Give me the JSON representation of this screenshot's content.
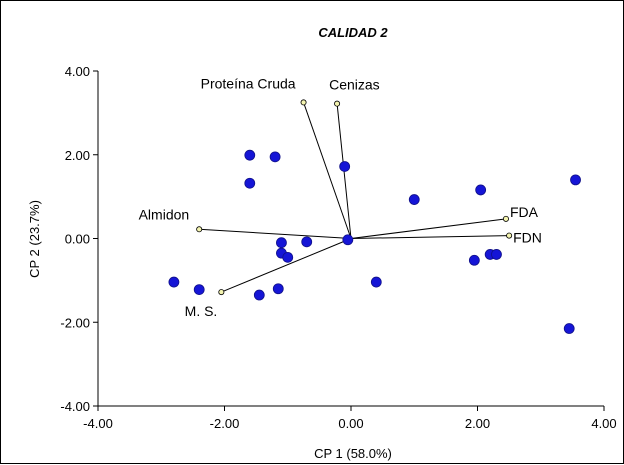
{
  "chart_data": {
    "type": "scatter",
    "title": "CALIDAD 2",
    "xlabel": "CP 1 (58.0%)",
    "ylabel": "CP 2 (23.7%)",
    "xlim": [
      -4,
      4
    ],
    "ylim": [
      -4,
      4
    ],
    "x_ticks": [
      "-4.00",
      "-2.00",
      "0.00",
      "2.00",
      "4.00"
    ],
    "y_ticks": [
      "4.00",
      "2.00",
      "0.00",
      "-2.00",
      "-4.00"
    ],
    "grid": false,
    "point_color": "#1515d6",
    "vector_color": "#000000",
    "vector_tip_color": "#f4f4b0",
    "points": [
      {
        "x": -1.6,
        "y": 1.99
      },
      {
        "x": -1.2,
        "y": 1.95
      },
      {
        "x": -1.6,
        "y": 1.32
      },
      {
        "x": -0.1,
        "y": 1.72
      },
      {
        "x": 1.0,
        "y": 0.93
      },
      {
        "x": 2.05,
        "y": 1.16
      },
      {
        "x": 3.55,
        "y": 1.4
      },
      {
        "x": -1.1,
        "y": -0.1
      },
      {
        "x": -0.7,
        "y": -0.08
      },
      {
        "x": -1.1,
        "y": -0.35
      },
      {
        "x": -1.0,
        "y": -0.45
      },
      {
        "x": -0.05,
        "y": -0.03
      },
      {
        "x": 0.4,
        "y": -1.04
      },
      {
        "x": 1.95,
        "y": -0.52
      },
      {
        "x": 2.2,
        "y": -0.38
      },
      {
        "x": 2.3,
        "y": -0.38
      },
      {
        "x": -2.8,
        "y": -1.04
      },
      {
        "x": -2.4,
        "y": -1.22
      },
      {
        "x": -1.45,
        "y": -1.35
      },
      {
        "x": -1.15,
        "y": -1.2
      },
      {
        "x": 3.45,
        "y": -2.15
      }
    ],
    "vectors": [
      {
        "label": "Proteína Cruda",
        "x": -0.75,
        "y": 3.25
      },
      {
        "label": "Cenizas",
        "x": -0.22,
        "y": 3.22
      },
      {
        "label": "Almidon",
        "x": -2.4,
        "y": 0.22
      },
      {
        "label": "M. S.",
        "x": -2.05,
        "y": -1.28
      },
      {
        "label": "FDA",
        "x": 2.45,
        "y": 0.47
      },
      {
        "label": "FDN",
        "x": 2.5,
        "y": 0.07
      }
    ]
  }
}
